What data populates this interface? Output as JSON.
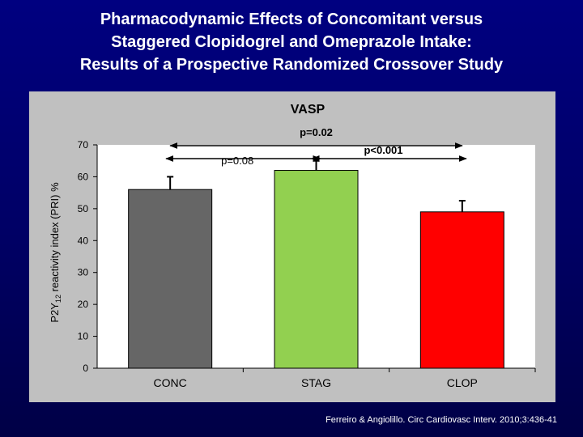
{
  "slide": {
    "title_lines": [
      "Pharmacodynamic Effects of Concomitant versus",
      "Staggered Clopidogrel and Omeprazole Intake:",
      "Results of a Prospective Randomized Crossover Study"
    ],
    "citation": "Ferreiro & Angiolillo. Circ Cardiovasc Interv. 2010;3:436-41"
  },
  "colors": {
    "background": "#000080",
    "panel": "#c0c0c0",
    "plot_area": "#ffffff",
    "conc": "#666666",
    "stag": "#92d050",
    "clop": "#ff0000"
  },
  "chart_data": {
    "type": "bar",
    "title": "VASP",
    "ylabel_parts": [
      "P2Y",
      "12",
      " reactivity index (PRI) %"
    ],
    "xlabel": "",
    "categories": [
      "CONC",
      "STAG",
      "CLOP"
    ],
    "values": [
      56,
      62,
      49
    ],
    "error_upper": [
      60,
      65,
      52.5
    ],
    "ylim": [
      0,
      70
    ],
    "yticks": [
      0,
      10,
      20,
      30,
      40,
      50,
      60,
      70
    ],
    "grid": false,
    "annotations": [
      {
        "label": "p=0.02",
        "from": "CONC",
        "to": "CLOP",
        "bold": true
      },
      {
        "label": "p=0.08",
        "from": "CONC",
        "to": "STAG",
        "bold": false
      },
      {
        "label": "p<0.001",
        "from": "STAG",
        "to": "CLOP",
        "bold": true
      }
    ]
  }
}
